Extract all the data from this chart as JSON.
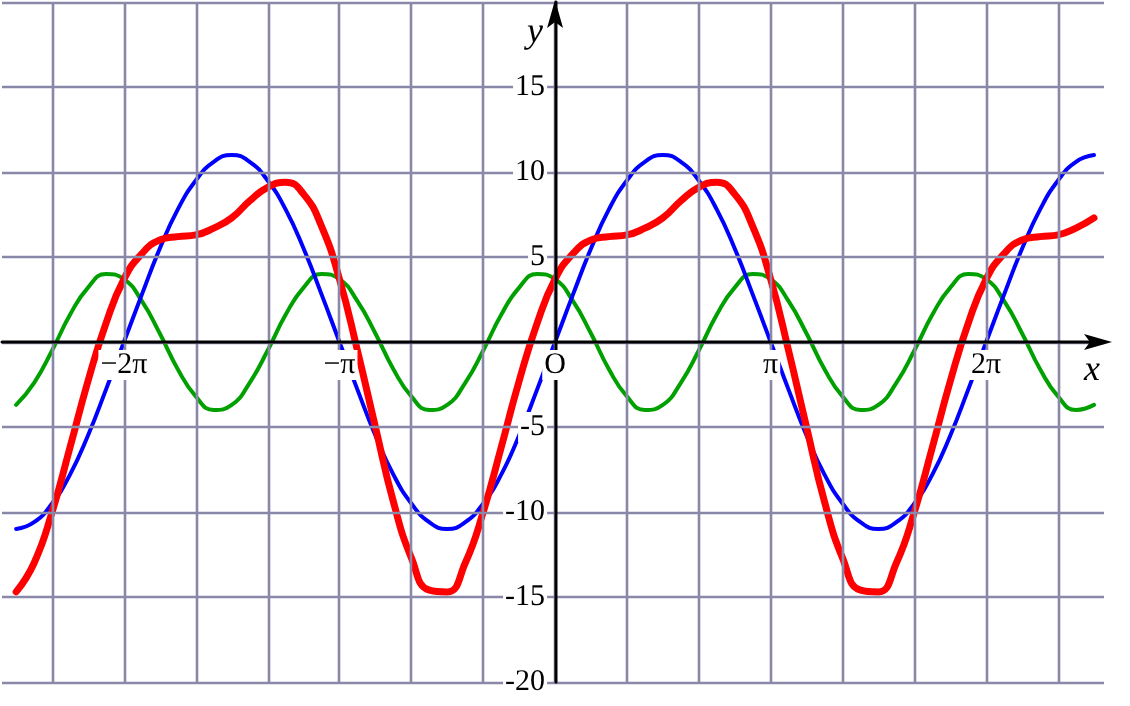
{
  "chart_data": {
    "type": "line",
    "xlabel": "x",
    "ylabel": "y",
    "x": [
      -7.854,
      -7.592,
      -7.33,
      -7.069,
      -6.807,
      -6.545,
      -6.283,
      -6.021,
      -5.76,
      -5.498,
      -5.236,
      -4.974,
      -4.712,
      -4.451,
      -4.189,
      -3.927,
      -3.665,
      -3.403,
      -3.142,
      -2.88,
      -2.618,
      -2.356,
      -2.094,
      -1.833,
      -1.571,
      -1.309,
      -1.047,
      -0.785,
      -0.524,
      -0.262,
      0,
      0.262,
      0.524,
      0.785,
      1.047,
      1.309,
      1.571,
      1.833,
      2.094,
      2.356,
      2.618,
      2.88,
      3.142,
      3.403,
      3.665,
      3.927,
      4.189,
      4.451,
      4.712,
      4.974,
      5.236,
      5.498,
      5.76,
      6.021,
      6.283,
      6.545,
      6.807,
      7.069,
      7.33,
      7.592,
      7.854
    ],
    "series": [
      {
        "color": "#ff0000",
        "values": [
          -14.7,
          -13.0,
          -10.0,
          -6.2,
          -2.3,
          1.1,
          3.7,
          5.2,
          6.0,
          6.2,
          6.3,
          6.7,
          7.3,
          8.3,
          9.1,
          9.4,
          8.7,
          6.8,
          3.7,
          -0.5,
          -5.0,
          -9.4,
          -12.7,
          -14.6,
          -14.7,
          -13.0,
          -10.0,
          -6.2,
          -2.3,
          1.1,
          3.7,
          5.2,
          6.0,
          6.2,
          6.3,
          6.7,
          7.3,
          8.3,
          9.1,
          9.4,
          8.7,
          6.8,
          3.7,
          -0.5,
          -5.0,
          -9.4,
          -12.7,
          -14.6,
          -14.7,
          -13.0,
          -10.0,
          -6.2,
          -2.3,
          1.1,
          3.7,
          5.2,
          6.0,
          6.2,
          6.3,
          6.7,
          7.3
        ]
      },
      {
        "color": "#0000ff",
        "values": [
          -11,
          -10.6,
          -9.5,
          -7.8,
          -5.5,
          -2.8,
          0,
          2.8,
          5.5,
          7.8,
          9.5,
          10.6,
          11,
          10.6,
          9.5,
          7.8,
          5.5,
          2.8,
          0,
          -2.8,
          -5.5,
          -7.8,
          -9.5,
          -10.6,
          -11,
          -10.6,
          -9.5,
          -7.8,
          -5.5,
          -2.8,
          0,
          2.8,
          5.5,
          7.8,
          9.5,
          10.6,
          11,
          10.6,
          9.5,
          7.8,
          5.5,
          2.8,
          0,
          -2.8,
          -5.5,
          -7.8,
          -9.5,
          -10.6,
          -11,
          -10.6,
          -9.5,
          -7.8,
          -5.5,
          -2.8,
          0,
          2.8,
          5.5,
          7.8,
          9.5,
          10.6,
          11
        ]
      },
      {
        "color": "#00a000",
        "values": [
          -3.7,
          -2.4,
          -0.5,
          1.6,
          3.2,
          4.0,
          3.7,
          2.4,
          0.5,
          -1.6,
          -3.2,
          -4.0,
          -3.7,
          -2.4,
          -0.5,
          1.6,
          3.2,
          4.0,
          3.7,
          2.4,
          0.5,
          -1.6,
          -3.2,
          -4.0,
          -3.7,
          -2.4,
          -0.5,
          1.6,
          3.2,
          4.0,
          3.7,
          2.4,
          0.5,
          -1.6,
          -3.2,
          -4.0,
          -3.7,
          -2.4,
          -0.5,
          1.6,
          3.2,
          4.0,
          3.7,
          2.4,
          0.5,
          -1.6,
          -3.2,
          -4.0,
          -3.7,
          -2.4,
          -0.5,
          1.6,
          3.2,
          4.0,
          3.7,
          2.4,
          0.5,
          -1.6,
          -3.2,
          -4.0,
          -3.7
        ]
      }
    ],
    "xlim": [
      -8.06,
      8.0
    ],
    "xticks": [
      {
        "value": -7.33,
        "label": null
      },
      {
        "value": -6.283,
        "label": "−2π"
      },
      {
        "value": -5.236,
        "label": null
      },
      {
        "value": -4.189,
        "label": null
      },
      {
        "value": -3.142,
        "label": "−π"
      },
      {
        "value": -2.094,
        "label": null
      },
      {
        "value": -1.047,
        "label": null
      },
      {
        "value": 0,
        "label": "O"
      },
      {
        "value": 1.047,
        "label": null
      },
      {
        "value": 2.094,
        "label": null
      },
      {
        "value": 3.142,
        "label": "π"
      },
      {
        "value": 4.189,
        "label": null
      },
      {
        "value": 5.236,
        "label": null
      },
      {
        "value": 6.283,
        "label": "2π"
      },
      {
        "value": 7.33,
        "label": null
      }
    ],
    "ylim": [
      -20,
      20
    ],
    "yticks": [
      -20,
      -15,
      -10,
      -5,
      {
        "value": 0,
        "label": null
      },
      5,
      10,
      15,
      {
        "value": 20,
        "label": null
      }
    ],
    "grid": true,
    "marker": "none",
    "line_style": "solid"
  }
}
